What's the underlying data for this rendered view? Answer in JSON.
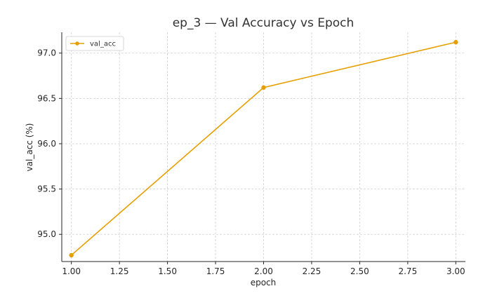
{
  "chart_data": {
    "type": "line",
    "title": "ep_3 — Val Accuracy vs Epoch",
    "xlabel": "epoch",
    "ylabel": "val_acc (%)",
    "xlim": [
      0.95,
      3.05
    ],
    "ylim": [
      94.7,
      97.23
    ],
    "xticks": [
      "1.00",
      "1.25",
      "1.50",
      "1.75",
      "2.00",
      "2.25",
      "2.50",
      "2.75",
      "3.00"
    ],
    "xtick_values": [
      1.0,
      1.25,
      1.5,
      1.75,
      2.0,
      2.25,
      2.5,
      2.75,
      3.0
    ],
    "yticks": [
      "95.0",
      "95.5",
      "96.0",
      "96.5",
      "97.0"
    ],
    "ytick_values": [
      95.0,
      95.5,
      96.0,
      96.5,
      97.0
    ],
    "grid": true,
    "legend_position": "top-left",
    "series": [
      {
        "name": "val_acc",
        "color": "#e69f00",
        "marker": "circle",
        "x": [
          1,
          2,
          3
        ],
        "y": [
          94.77,
          96.62,
          97.12
        ]
      }
    ]
  }
}
